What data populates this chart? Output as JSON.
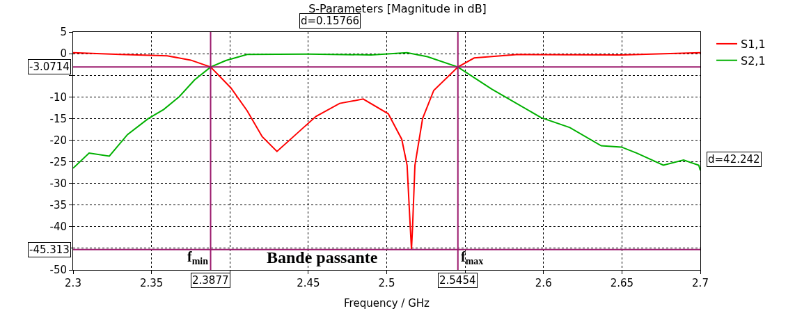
{
  "chart_data": {
    "type": "line",
    "title": "S-Parameters [Magnitude in dB]",
    "xlabel": "Frequency / GHz",
    "xlim": [
      2.3,
      2.7
    ],
    "xticks": [
      2.3,
      2.35,
      {
        "value": 2.4,
        "label": null
      },
      2.45,
      2.5,
      {
        "value": 2.55,
        "label": null
      },
      2.6,
      2.65,
      2.7
    ],
    "ylim": [
      -50,
      5
    ],
    "yticks": [
      5,
      0,
      {
        "value": -5,
        "label": null
      },
      -10,
      -15,
      -20,
      -25,
      -30,
      -35,
      -40,
      {
        "value": -45,
        "label": null
      },
      -50
    ],
    "grid": true,
    "legend": "top right",
    "line_style": "solid",
    "series": [
      {
        "name": "S1,1",
        "color": "#ff0000",
        "x": [
          2.3,
          2.33,
          2.36,
          2.375,
          2.3877,
          2.4006,
          2.411,
          2.4206,
          2.43,
          2.442,
          2.4549,
          2.47,
          2.485,
          2.501,
          2.5096,
          2.513,
          2.515,
          2.5158,
          2.5165,
          2.518,
          2.5229,
          2.53,
          2.5454,
          2.5558,
          2.584,
          2.65,
          2.7
        ],
        "values": [
          0.2,
          -0.2,
          -0.5,
          -1.5,
          -3.1,
          -7.9,
          -13.2,
          -19.2,
          -22.6,
          -18.7,
          -14.5,
          -11.5,
          -10.5,
          -13.9,
          -19.8,
          -25.8,
          -40,
          -45.3,
          -40,
          -25.8,
          -15,
          -8.5,
          -3.1,
          -1,
          -0.2,
          -0.3,
          0.2
        ]
      },
      {
        "name": "S2,1",
        "color": "#00b000",
        "x": [
          2.3,
          2.3102,
          2.3231,
          2.3347,
          2.348,
          2.3578,
          2.3676,
          2.3774,
          2.3877,
          2.3974,
          2.411,
          2.45,
          2.49,
          2.513,
          2.526,
          2.5454,
          2.567,
          2.5985,
          2.6168,
          2.6368,
          2.6497,
          2.6595,
          2.6764,
          2.6893,
          2.699,
          2.7
        ],
        "values": [
          -26.5,
          -23,
          -23.7,
          -18.7,
          -15,
          -12.9,
          -10,
          -6.1,
          -3.1,
          -1.6,
          -0.2,
          -0.1,
          -0.3,
          0.2,
          -0.7,
          -3.1,
          -8.2,
          -14.8,
          -17.1,
          -21.3,
          -21.6,
          -23,
          -25.8,
          -24.6,
          -25.8,
          -27
        ]
      }
    ],
    "ref_lines": [
      {
        "axis": "x",
        "value": 2.3877,
        "label": "2.3877",
        "color": "#9b1b6e"
      },
      {
        "axis": "x",
        "value": 2.5454,
        "label": "2.5454",
        "color": "#9b1b6e"
      },
      {
        "axis": "y",
        "value": -3.0714,
        "label": "-3.0714",
        "color": "#9b1b6e"
      },
      {
        "axis": "y",
        "value": -45.313,
        "label": "-45.313",
        "color": "#9b1b6e"
      }
    ],
    "annotations": [
      "d=0.15766",
      "d=42.242",
      "f$_{min}$",
      "f$_{max}$",
      "Bande passante"
    ]
  }
}
